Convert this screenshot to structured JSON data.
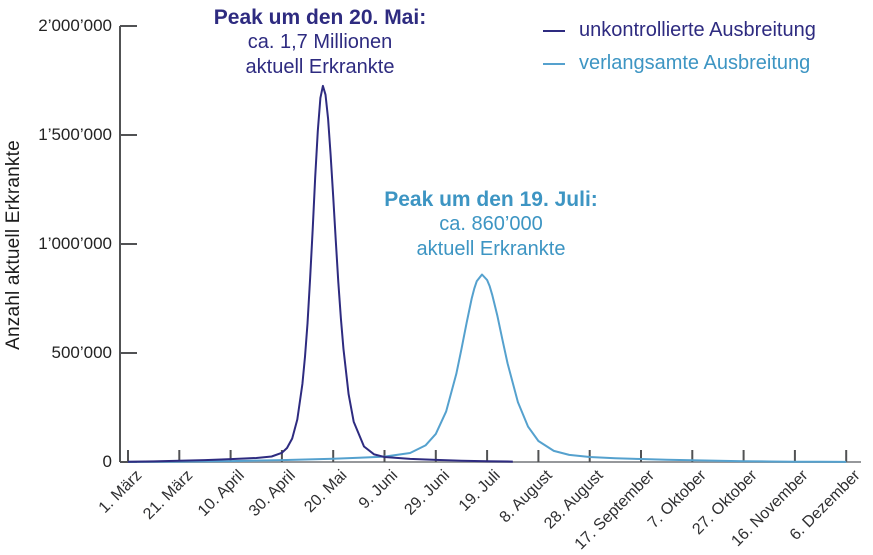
{
  "colors": {
    "dark_series": "#2e2b80",
    "light_series": "#55a1ce",
    "light_text": "#3d95c3",
    "y_axis": "#515254",
    "x_axis_line": "#96989b",
    "tick": "#515254",
    "axis_text": "#2f2f31"
  },
  "y_axis": {
    "label": "Anzahl aktuell Erkrankte",
    "tick_labels": [
      "0",
      "500’000",
      "1’000’000",
      "1’500’000",
      "2’000’000"
    ],
    "tick_values": [
      0,
      500000,
      1000000,
      1500000,
      2000000
    ]
  },
  "x_axis": {
    "tick_labels": [
      "1. März",
      "21. März",
      "10. April",
      "30. April",
      "20. Mai",
      "9. Juni",
      "29. Juni",
      "19. Juli",
      "8. August",
      "28. August",
      "17. September",
      "7. Oktober",
      "27. Oktober",
      "16. November",
      "6. Dezember"
    ],
    "tick_days": [
      0,
      20,
      40,
      60,
      80,
      100,
      120,
      140,
      160,
      180,
      200,
      220,
      240,
      260,
      280
    ]
  },
  "annotations": [
    {
      "heading": "Peak um den 20. Mai:",
      "line2": "ca. 1,7 Millionen",
      "line3": "aktuell Erkrankte"
    },
    {
      "heading": "Peak um den 19. Juli:",
      "line2": "ca. 860’000",
      "line3": "aktuell Erkrankte"
    }
  ],
  "chart_data": {
    "type": "line",
    "title": "",
    "xlabel": "",
    "ylabel": "Anzahl aktuell Erkrankte",
    "x_unit": "days since 1. März",
    "ylim": [
      0,
      2000000
    ],
    "y_ticks": [
      0,
      500000,
      1000000,
      1500000,
      2000000
    ],
    "x_tick_labels": [
      "1. März",
      "21. März",
      "10. April",
      "30. April",
      "20. Mai",
      "9. Juni",
      "29. Juni",
      "19. Juli",
      "8. August",
      "28. August",
      "17. September",
      "7. Oktober",
      "27. Oktober",
      "16. November",
      "6. Dezember"
    ],
    "x_tick_days": [
      0,
      20,
      40,
      60,
      80,
      100,
      120,
      140,
      160,
      180,
      200,
      220,
      240,
      260,
      280
    ],
    "grid": false,
    "legend_position": "top-right",
    "series": [
      {
        "name": "unkontrollierte Ausbreitung",
        "color": "#2e2b80",
        "text_color": "#2e2b80",
        "peak": {
          "date": "20. Mai",
          "day": 80,
          "value": 1700000,
          "value_text": "ca. 1,7 Millionen"
        },
        "points": [
          [
            0,
            1400
          ],
          [
            10,
            2900
          ],
          [
            20,
            5300
          ],
          [
            30,
            8800
          ],
          [
            40,
            13200
          ],
          [
            50,
            18400
          ],
          [
            56,
            25200
          ],
          [
            60,
            42300
          ],
          [
            62,
            64200
          ],
          [
            64,
            108000
          ],
          [
            66,
            195000
          ],
          [
            68,
            358000
          ],
          [
            69,
            483000
          ],
          [
            70,
            635000
          ],
          [
            71,
            841000
          ],
          [
            72,
            1068000
          ],
          [
            73,
            1307000
          ],
          [
            74,
            1519000
          ],
          [
            75,
            1670000
          ],
          [
            76,
            1725000
          ],
          [
            77,
            1685000
          ],
          [
            78,
            1574000
          ],
          [
            79,
            1410000
          ],
          [
            80,
            1218000
          ],
          [
            81,
            1014000
          ],
          [
            82,
            825000
          ],
          [
            83,
            658000
          ],
          [
            84,
            517000
          ],
          [
            86,
            311000
          ],
          [
            88,
            185000
          ],
          [
            92,
            71000
          ],
          [
            96,
            35000
          ],
          [
            100,
            23100
          ],
          [
            110,
            14200
          ],
          [
            120,
            9600
          ],
          [
            130,
            5900
          ],
          [
            140,
            3300
          ],
          [
            150,
            1700
          ]
        ]
      },
      {
        "name": "verlangsamte Ausbreitung",
        "color": "#55a1ce",
        "text_color": "#3d95c3",
        "peak": {
          "date": "19. Juli",
          "day": 140,
          "value": 860000,
          "value_text": "ca. 860’000"
        },
        "points": [
          [
            0,
            600
          ],
          [
            20,
            1700
          ],
          [
            40,
            4200
          ],
          [
            60,
            8700
          ],
          [
            80,
            15200
          ],
          [
            90,
            19100
          ],
          [
            100,
            24800
          ],
          [
            110,
            41500
          ],
          [
            116,
            76000
          ],
          [
            120,
            129000
          ],
          [
            124,
            231000
          ],
          [
            128,
            404000
          ],
          [
            130,
            517000
          ],
          [
            132,
            638000
          ],
          [
            134,
            750000
          ],
          [
            135,
            796000
          ],
          [
            136,
            830000
          ],
          [
            138,
            860000
          ],
          [
            140,
            835000
          ],
          [
            141,
            806000
          ],
          [
            142,
            767000
          ],
          [
            144,
            670000
          ],
          [
            146,
            559000
          ],
          [
            148,
            452000
          ],
          [
            152,
            275000
          ],
          [
            156,
            162000
          ],
          [
            160,
            96500
          ],
          [
            166,
            50700
          ],
          [
            172,
            32600
          ],
          [
            180,
            23100
          ],
          [
            190,
            17500
          ],
          [
            200,
            13700
          ],
          [
            210,
            10400
          ],
          [
            220,
            7600
          ],
          [
            230,
            5300
          ],
          [
            240,
            3600
          ],
          [
            250,
            2300
          ],
          [
            260,
            1400
          ],
          [
            270,
            900
          ],
          [
            280,
            500
          ]
        ]
      }
    ]
  }
}
